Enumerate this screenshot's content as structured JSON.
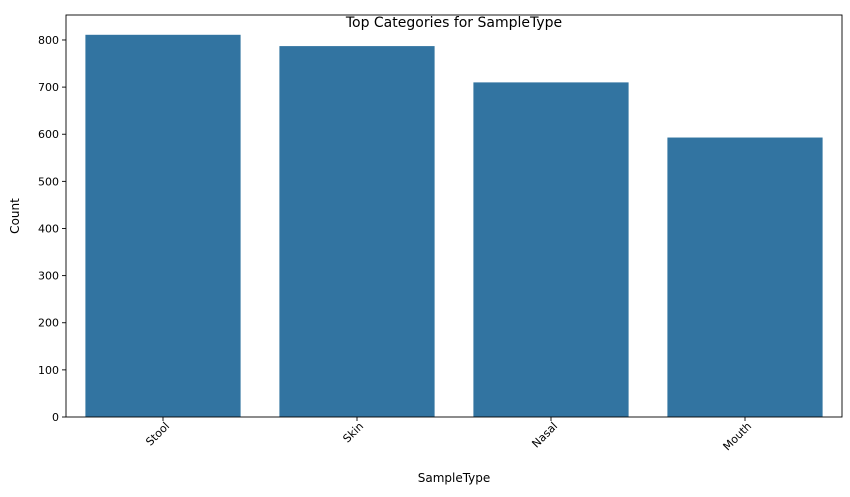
{
  "chart_data": {
    "type": "bar",
    "title": "Top Categories for SampleType",
    "xlabel": "SampleType",
    "ylabel": "Count",
    "categories": [
      "Stool",
      "Skin",
      "Nasal",
      "Mouth"
    ],
    "values": [
      811,
      787,
      710,
      593
    ],
    "ylim": [
      0,
      853
    ],
    "yticks": [
      0,
      100,
      200,
      300,
      400,
      500,
      600,
      700,
      800
    ],
    "xtick_rotation_deg": 45,
    "bar_color": "#3274a1",
    "grid": false,
    "legend": "none"
  }
}
